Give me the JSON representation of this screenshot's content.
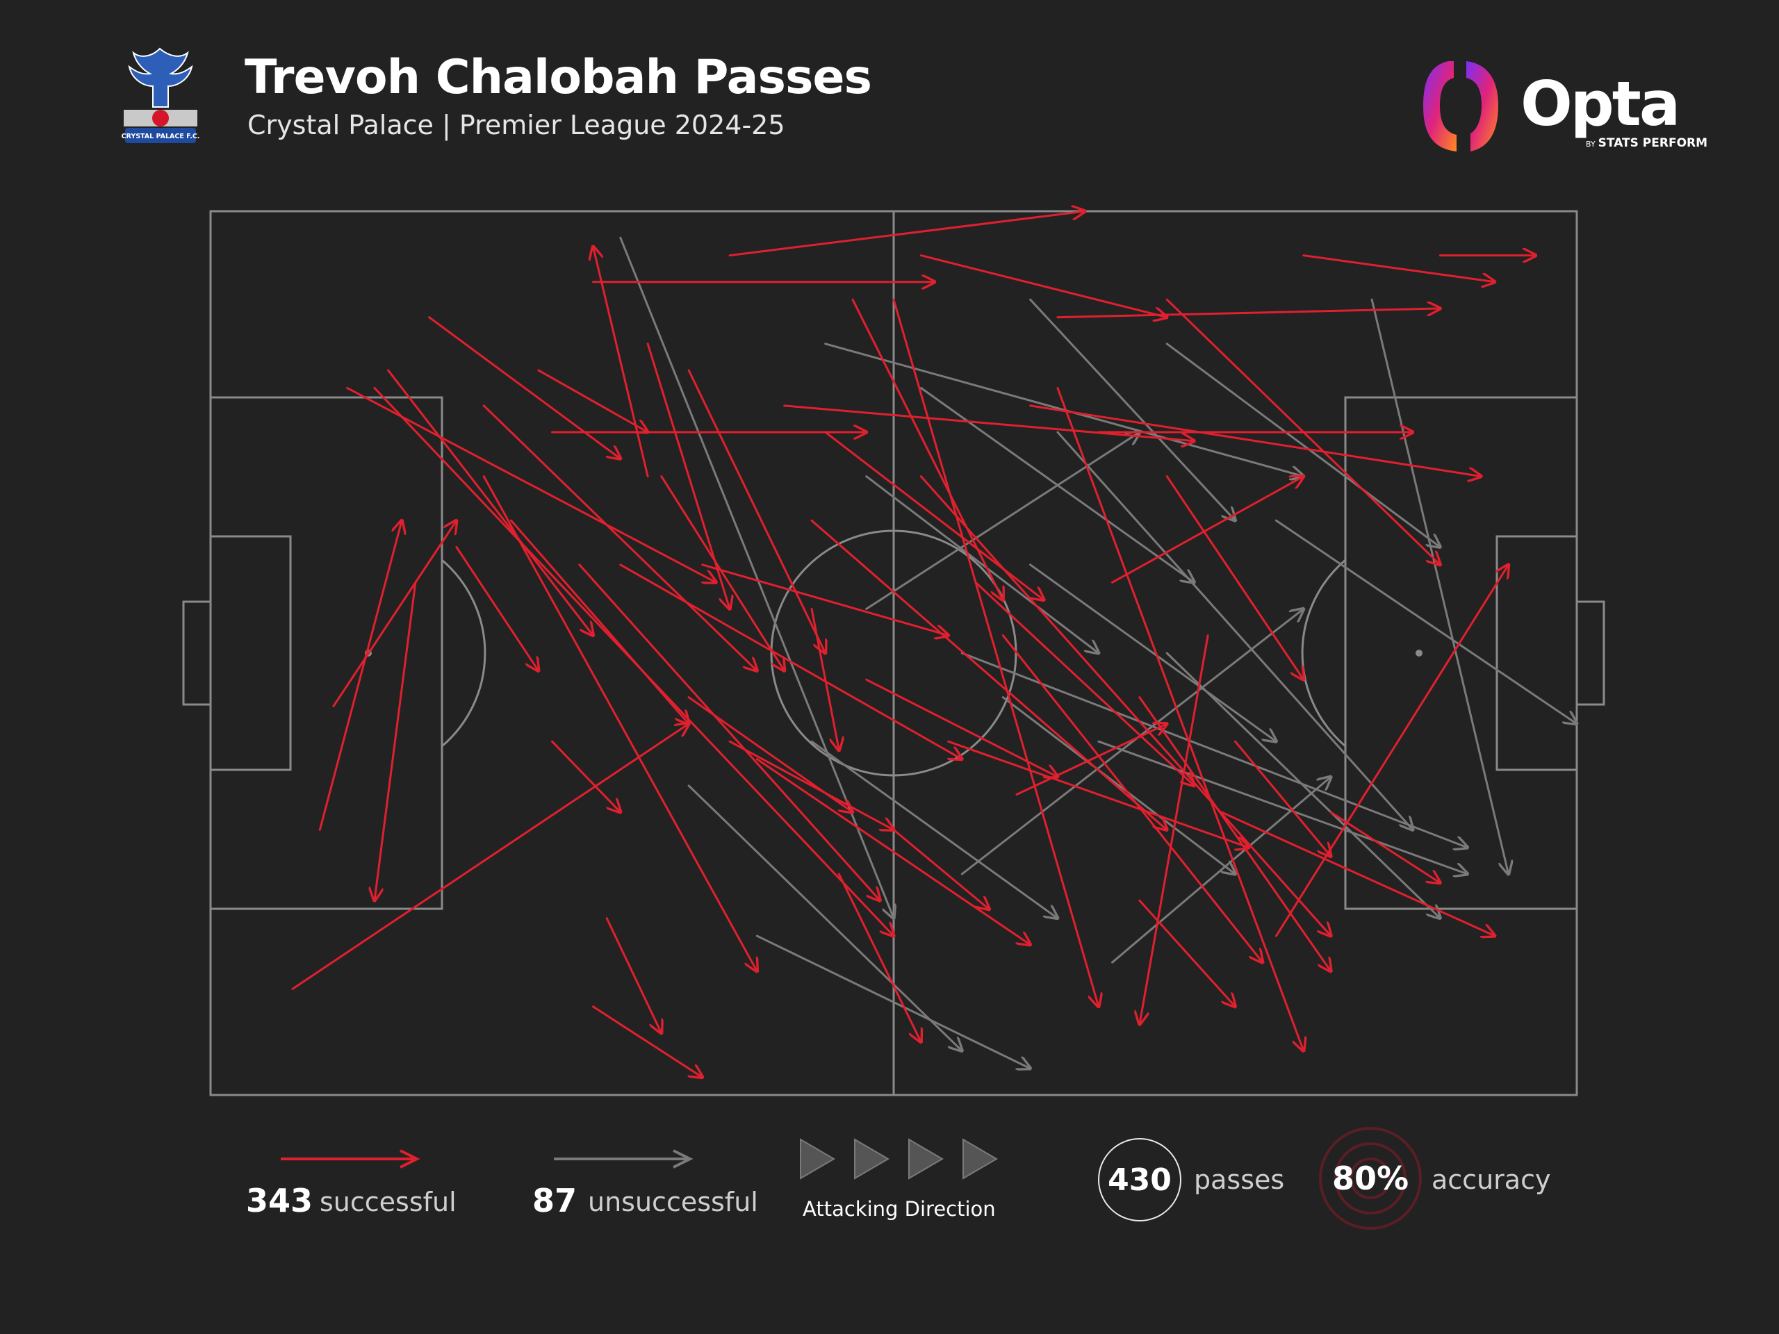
{
  "header": {
    "title": "Trevoh Chalobah Passes",
    "subtitle": "Crystal Palace | Premier League 2024-25",
    "crest_icon": "crystal-palace-crest-icon",
    "crest_text": "CRYSTAL PALACE F.C.",
    "brand": {
      "wordmark": "Opta",
      "byline_by": "BY",
      "byline_name": "STATS PERFORM",
      "icon": "opta-logo-icon"
    }
  },
  "colors": {
    "background": "#222222",
    "pitch_lines": "#8a8a8a",
    "successful": "#e0202e",
    "unsuccessful": "#7a7a7a",
    "text": "#ffffff"
  },
  "chart_data": {
    "type": "pass_map",
    "pitch": {
      "length": 100,
      "width": 100,
      "attacking_direction": "left-to-right"
    },
    "totals": {
      "passes": 430,
      "successful": 343,
      "unsuccessful": 87,
      "accuracy_pct": 80
    },
    "unsuccessful_sample": [
      [
        55,
        50,
        92,
        72
      ],
      [
        30,
        3,
        50,
        80
      ],
      [
        45,
        15,
        80,
        30
      ],
      [
        60,
        10,
        75,
        35
      ],
      [
        62,
        25,
        88,
        70
      ],
      [
        70,
        50,
        90,
        80
      ],
      [
        40,
        82,
        60,
        97
      ],
      [
        48,
        30,
        65,
        50
      ],
      [
        55,
        75,
        80,
        45
      ],
      [
        65,
        60,
        92,
        75
      ],
      [
        78,
        35,
        100,
        58
      ],
      [
        85,
        10,
        95,
        75
      ],
      [
        60,
        40,
        78,
        60
      ],
      [
        48,
        45,
        68,
        25
      ],
      [
        35,
        65,
        55,
        95
      ],
      [
        58,
        55,
        75,
        75
      ],
      [
        66,
        85,
        82,
        64
      ],
      [
        70,
        15,
        90,
        38
      ],
      [
        52,
        20,
        72,
        42
      ],
      [
        44,
        60,
        62,
        80
      ]
    ],
    "successful_sample": [
      [
        8,
        70,
        14,
        35
      ],
      [
        6,
        88,
        35,
        58
      ],
      [
        12,
        20,
        50,
        82
      ],
      [
        25,
        60,
        30,
        68
      ],
      [
        20,
        30,
        40,
        86
      ],
      [
        35,
        18,
        45,
        50
      ],
      [
        44,
        35,
        70,
        70
      ],
      [
        50,
        70,
        57,
        79
      ],
      [
        52,
        30,
        82,
        82
      ],
      [
        62,
        20,
        80,
        95
      ],
      [
        78,
        82,
        95,
        40
      ],
      [
        70,
        10,
        90,
        40
      ],
      [
        40,
        62,
        60,
        83
      ],
      [
        30,
        40,
        55,
        62
      ],
      [
        35,
        55,
        47,
        68
      ],
      [
        15,
        42,
        12,
        78
      ],
      [
        9,
        56,
        18,
        35
      ],
      [
        22,
        35,
        35,
        58
      ],
      [
        28,
        90,
        36,
        98
      ],
      [
        50,
        10,
        65,
        90
      ],
      [
        58,
        48,
        77,
        85
      ],
      [
        65,
        25,
        88,
        25
      ],
      [
        75,
        60,
        82,
        73
      ],
      [
        68,
        55,
        82,
        86
      ],
      [
        45,
        25,
        61,
        44
      ],
      [
        32,
        15,
        38,
        45
      ],
      [
        47,
        10,
        58,
        44
      ],
      [
        27,
        40,
        49,
        78
      ],
      [
        20,
        22,
        40,
        52
      ],
      [
        10,
        20,
        37,
        42
      ],
      [
        16,
        12,
        30,
        28
      ],
      [
        36,
        40,
        54,
        48
      ],
      [
        48,
        53,
        62,
        64
      ],
      [
        56,
        42,
        72,
        65
      ],
      [
        62,
        12,
        90,
        11
      ],
      [
        60,
        22,
        93,
        30
      ],
      [
        42,
        22,
        72,
        26
      ],
      [
        54,
        60,
        76,
        72
      ],
      [
        66,
        42,
        80,
        30
      ],
      [
        73,
        48,
        68,
        92
      ],
      [
        70,
        30,
        80,
        53
      ],
      [
        33,
        30,
        42,
        52
      ],
      [
        38,
        60,
        50,
        70
      ],
      [
        46,
        75,
        52,
        94
      ],
      [
        59,
        66,
        70,
        58
      ],
      [
        13,
        18,
        28,
        48
      ],
      [
        24,
        18,
        32,
        25
      ],
      [
        29,
        80,
        33,
        93
      ],
      [
        44,
        45,
        46,
        61
      ],
      [
        68,
        78,
        75,
        90
      ],
      [
        80,
        5,
        94,
        8
      ],
      [
        82,
        68,
        90,
        76
      ],
      [
        90,
        5,
        97,
        5
      ],
      [
        28,
        8,
        53,
        8
      ],
      [
        32,
        30,
        28,
        4
      ],
      [
        74,
        68,
        94,
        82
      ],
      [
        18,
        38,
        24,
        52
      ],
      [
        38,
        5,
        64,
        0
      ],
      [
        25,
        25,
        48,
        25
      ],
      [
        52,
        5,
        70,
        12
      ]
    ]
  },
  "legend": {
    "successful_count": "343",
    "successful_label": "successful",
    "unsuccessful_count": "87",
    "unsuccessful_label": "unsuccessful",
    "direction_label": "Attacking Direction",
    "passes_value": "430",
    "passes_label": "passes",
    "accuracy_value": "80%",
    "accuracy_label": "accuracy"
  }
}
